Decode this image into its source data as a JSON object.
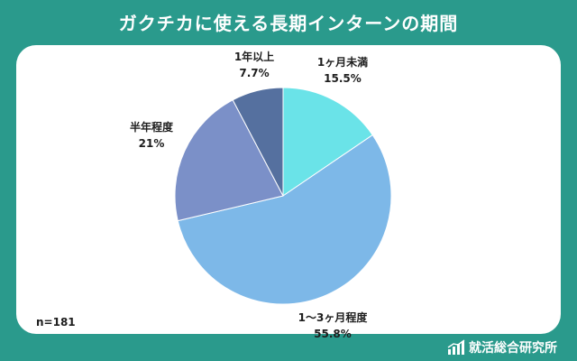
{
  "header": {
    "title": "ガクチカに使える長期インターンの期間"
  },
  "footer": {
    "sample_size": "n=181",
    "brand_name": "就活総合研究所",
    "brand_icon": "bar-chart-icon"
  },
  "colors": {
    "background": "#2a9a8c",
    "panel": "#ffffff",
    "slice_1": "#6ae3e8",
    "slice_2": "#7db8e8",
    "slice_3": "#7b90c8",
    "slice_4": "#55709f"
  },
  "chart_data": {
    "type": "pie",
    "start_angle_deg": 0,
    "direction": "clockwise",
    "slices": [
      {
        "label": "1ヶ月未満",
        "value": 15.5,
        "value_label": "15.5%",
        "color": "#6ae3e8"
      },
      {
        "label": "1〜3ヶ月程度",
        "value": 55.8,
        "value_label": "55.8%",
        "color": "#7db8e8"
      },
      {
        "label": "半年程度",
        "value": 21,
        "value_label": "21%",
        "color": "#7b90c8"
      },
      {
        "label": "1年以上",
        "value": 7.7,
        "value_label": "7.7%",
        "color": "#55709f"
      }
    ]
  }
}
